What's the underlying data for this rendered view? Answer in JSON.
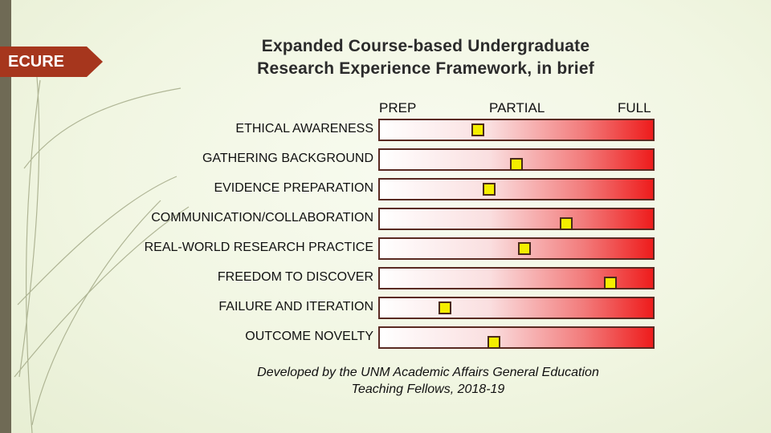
{
  "tag": {
    "label": "ECURE"
  },
  "title": {
    "line1": "Expanded Course-based Undergraduate",
    "line2": "Research Experience Framework, in brief"
  },
  "chart_data": {
    "type": "bar",
    "title": "Expanded Course-based Undergraduate Research Experience Framework, in brief",
    "scale_labels": [
      "PREP",
      "PARTIAL",
      "FULL"
    ],
    "categories": [
      "ETHICAL AWARENESS",
      "GATHERING BACKGROUND",
      "EVIDENCE PREPARATION",
      "COMMUNICATION/COLLABORATION",
      "REAL-WORLD RESEARCH PRACTICE",
      "FREEDOM TO DISCOVER",
      "FAILURE AND ITERATION",
      "OUTCOME NOVELTY"
    ],
    "values": [
      0.36,
      0.5,
      0.4,
      0.68,
      0.53,
      0.84,
      0.24,
      0.42
    ],
    "xlim": [
      0,
      1
    ],
    "colors": {
      "gradient_start": "#ffffff",
      "gradient_end": "#ee1c1c",
      "marker": "#f4ee00",
      "border": "#5a2a22"
    }
  },
  "footer": {
    "line1": "Developed by the UNM Academic Affairs General Education",
    "line2": "Teaching Fellows, 2018-19"
  }
}
